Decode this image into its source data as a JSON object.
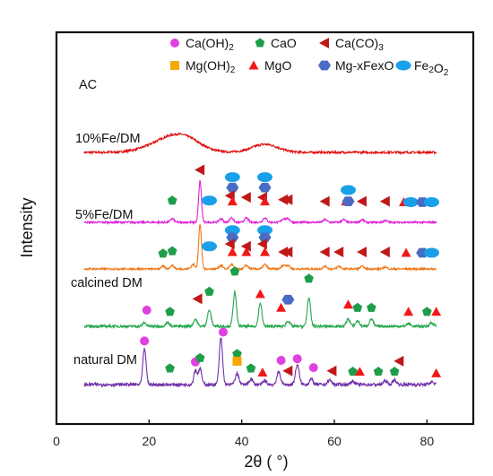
{
  "chart_data": {
    "type": "line",
    "xlabel": "2θ ( °)",
    "ylabel": "Intensity",
    "xlim": [
      0,
      90
    ],
    "xticks": [
      0,
      20,
      40,
      60,
      80
    ],
    "grid": false,
    "legend_position": "top",
    "legend": [
      {
        "name": "Ca(OH)2",
        "marker": "circle",
        "color": "#e040e0"
      },
      {
        "name": "CaO",
        "marker": "pentagon",
        "color": "#1e9e4a"
      },
      {
        "name": "Ca(CO)3",
        "marker": "triangle-left",
        "color": "#c01818"
      },
      {
        "name": "Mg(OH)2",
        "marker": "square",
        "color": "#f5a800"
      },
      {
        "name": "MgO",
        "marker": "triangle-up",
        "color": "#f21818"
      },
      {
        "name": "Mg-xFexO",
        "marker": "hexagon",
        "color": "#4a6bc4"
      },
      {
        "name": "Fe2O2",
        "marker": "ellipse",
        "color": "#1aa0e8"
      }
    ],
    "series": [
      {
        "name": "AC",
        "color": "#e01010",
        "baseline": 94,
        "noise": 0.6,
        "peaks": [
          [
            25,
            16,
            4.5
          ],
          [
            28,
            6,
            3
          ],
          [
            45,
            9,
            2.8
          ]
        ]
      },
      {
        "name": "10%Fe/DM",
        "color": "#e020d8",
        "baseline": 16,
        "noise": 0.5,
        "peaks": [
          [
            31,
            46,
            0.3
          ],
          [
            25,
            4,
            0.4
          ],
          [
            35.5,
            4,
            0.4
          ],
          [
            37.8,
            5,
            0.4
          ],
          [
            41,
            5,
            0.4
          ],
          [
            45,
            5,
            0.4
          ],
          [
            49,
            4,
            0.4
          ],
          [
            50,
            4,
            0.4
          ],
          [
            58,
            3,
            0.4
          ],
          [
            62,
            3,
            0.4
          ],
          [
            66,
            3,
            0.4
          ],
          [
            71,
            2,
            0.4
          ]
        ]
      },
      {
        "name": "5%Fe/DM",
        "color": "#f07818",
        "baseline": -36,
        "noise": 0.5,
        "peaks": [
          [
            29.5,
            5,
            0.4
          ],
          [
            31,
            50,
            0.3
          ],
          [
            23,
            3,
            0.4
          ],
          [
            25,
            4,
            0.4
          ],
          [
            35.5,
            4,
            0.4
          ],
          [
            37.8,
            5,
            0.4
          ],
          [
            41,
            4,
            0.4
          ],
          [
            45,
            5,
            0.4
          ],
          [
            49,
            4,
            0.4
          ],
          [
            50,
            4,
            0.4
          ],
          [
            58,
            3,
            0.4
          ],
          [
            61,
            3,
            0.4
          ],
          [
            66,
            3,
            0.4
          ],
          [
            71,
            2,
            0.4
          ]
        ]
      },
      {
        "name": "calcined DM",
        "color": "#22a84a",
        "baseline": -100,
        "noise": 0.7,
        "peaks": [
          [
            19,
            4,
            0.4
          ],
          [
            24,
            4,
            0.4
          ],
          [
            30,
            8,
            0.4
          ],
          [
            33,
            18,
            0.4
          ],
          [
            38.5,
            38,
            0.35
          ],
          [
            44,
            26,
            0.35
          ],
          [
            50,
            6,
            0.4
          ],
          [
            54.5,
            32,
            0.35
          ],
          [
            63,
            8,
            0.4
          ],
          [
            65,
            6,
            0.4
          ],
          [
            68,
            8,
            0.4
          ],
          [
            76,
            3,
            0.4
          ],
          [
            81,
            4,
            0.4
          ]
        ]
      },
      {
        "name": "natural DM",
        "color": "#7030a8",
        "baseline": -165,
        "noise": 0.9,
        "peaks": [
          [
            19,
            40,
            0.35
          ],
          [
            30,
            16,
            0.35
          ],
          [
            31,
            18,
            0.35
          ],
          [
            35.5,
            52,
            0.35
          ],
          [
            39,
            12,
            0.4
          ],
          [
            42,
            6,
            0.4
          ],
          [
            45,
            4,
            0.4
          ],
          [
            48,
            14,
            0.4
          ],
          [
            52,
            22,
            0.4
          ],
          [
            55,
            6,
            0.4
          ],
          [
            59,
            5,
            0.4
          ],
          [
            64,
            4,
            0.4
          ],
          [
            71,
            4,
            0.4
          ],
          [
            73,
            5,
            0.4
          ],
          [
            81,
            3,
            0.4
          ]
        ]
      }
    ],
    "phase_markers": [
      {
        "series": "10%Fe/DM",
        "items": [
          {
            "type": "triangle-left",
            "x": 31,
            "level": 6.5
          },
          {
            "type": "ellipse",
            "x": 38,
            "level": 5.6
          },
          {
            "type": "ellipse",
            "x": 45,
            "level": 5.6
          },
          {
            "type": "hexagon",
            "x": 38,
            "level": 4.3
          },
          {
            "type": "hexagon",
            "x": 45,
            "level": 4.3
          },
          {
            "type": "ellipse",
            "x": 63,
            "level": 4.0
          },
          {
            "type": "pentagon",
            "x": 25,
            "level": 2.7
          },
          {
            "type": "ellipse",
            "x": 33,
            "level": 2.7
          },
          {
            "type": "triangle-left",
            "x": 37.5,
            "level": 3.3
          },
          {
            "type": "triangle-left",
            "x": 41,
            "level": 3.1
          },
          {
            "type": "triangle-left",
            "x": 44.5,
            "level": 3.1
          },
          {
            "type": "triangle-left",
            "x": 49,
            "level": 2.8
          },
          {
            "type": "triangle-left",
            "x": 50,
            "level": 2.8
          },
          {
            "type": "triangle-up",
            "x": 38,
            "level": 2.6
          },
          {
            "type": "triangle-up",
            "x": 45,
            "level": 2.6
          },
          {
            "type": "triangle-left",
            "x": 58,
            "level": 2.6
          },
          {
            "type": "triangle-up",
            "x": 62.5,
            "level": 2.6
          },
          {
            "type": "hexagon",
            "x": 63,
            "level": 2.6
          },
          {
            "type": "triangle-left",
            "x": 66,
            "level": 2.6
          },
          {
            "type": "triangle-left",
            "x": 71,
            "level": 2.6
          },
          {
            "type": "triangle-up",
            "x": 75,
            "level": 2.5
          },
          {
            "type": "ellipse",
            "x": 76.5,
            "level": 2.5
          },
          {
            "type": "hexagon",
            "x": 79,
            "level": 2.5
          },
          {
            "type": "ellipse",
            "x": 81,
            "level": 2.5
          }
        ]
      },
      {
        "series": "5%Fe/DM",
        "items": [
          {
            "type": "ellipse",
            "x": 38,
            "level": 4.8
          },
          {
            "type": "ellipse",
            "x": 45,
            "level": 4.8
          },
          {
            "type": "hexagon",
            "x": 38,
            "level": 3.9
          },
          {
            "type": "hexagon",
            "x": 45,
            "level": 3.9
          },
          {
            "type": "triangle-left",
            "x": 37.5,
            "level": 3.1
          },
          {
            "type": "triangle-left",
            "x": 44.5,
            "level": 3.1
          },
          {
            "type": "ellipse",
            "x": 33,
            "level": 2.8
          },
          {
            "type": "triangle-left",
            "x": 41,
            "level": 2.8
          },
          {
            "type": "triangle-up",
            "x": 38,
            "level": 2.1
          },
          {
            "type": "triangle-up",
            "x": 41,
            "level": 2.1
          },
          {
            "type": "triangle-up",
            "x": 45,
            "level": 2.1
          },
          {
            "type": "pentagon",
            "x": 23,
            "level": 1.9
          },
          {
            "type": "pentagon",
            "x": 25,
            "level": 2.2
          },
          {
            "type": "triangle-left",
            "x": 49,
            "level": 2.1
          },
          {
            "type": "triangle-left",
            "x": 50,
            "level": 2.1
          },
          {
            "type": "triangle-left",
            "x": 58,
            "level": 2.1
          },
          {
            "type": "triangle-left",
            "x": 61,
            "level": 2.1
          },
          {
            "type": "triangle-left",
            "x": 66,
            "level": 2.1
          },
          {
            "type": "triangle-left",
            "x": 71,
            "level": 2.1
          },
          {
            "type": "triangle-up",
            "x": 75.5,
            "level": 2.0
          },
          {
            "type": "hexagon",
            "x": 79,
            "level": 2.0
          },
          {
            "type": "ellipse",
            "x": 81,
            "level": 2.0
          }
        ]
      },
      {
        "series": "calcined DM",
        "items": [
          {
            "type": "pentagon",
            "x": 38.5,
            "level": 6.8
          },
          {
            "type": "pentagon",
            "x": 54.5,
            "level": 5.9
          },
          {
            "type": "pentagon",
            "x": 33,
            "level": 4.3
          },
          {
            "type": "triangle-up",
            "x": 44,
            "level": 4.0
          },
          {
            "type": "triangle-left",
            "x": 30.5,
            "level": 3.4
          },
          {
            "type": "hexagon",
            "x": 50,
            "level": 3.3
          },
          {
            "type": "circle",
            "x": 19.5,
            "level": 2.0
          },
          {
            "type": "pentagon",
            "x": 24.5,
            "level": 1.8
          },
          {
            "type": "triangle-up",
            "x": 48.5,
            "level": 2.3
          },
          {
            "type": "triangle-up",
            "x": 63,
            "level": 2.7
          },
          {
            "type": "pentagon",
            "x": 65,
            "level": 2.3
          },
          {
            "type": "pentagon",
            "x": 68,
            "level": 2.3
          },
          {
            "type": "triangle-up",
            "x": 76,
            "level": 1.8
          },
          {
            "type": "pentagon",
            "x": 80,
            "level": 1.8
          },
          {
            "type": "triangle-up",
            "x": 82,
            "level": 1.8
          }
        ]
      },
      {
        "series": "natural DM",
        "items": [
          {
            "type": "circle",
            "x": 19,
            "level": 5.4
          },
          {
            "type": "circle",
            "x": 36,
            "level": 6.5
          },
          {
            "type": "circle",
            "x": 30,
            "level": 2.8
          },
          {
            "type": "pentagon",
            "x": 31,
            "level": 3.3
          },
          {
            "type": "pentagon",
            "x": 39,
            "level": 3.8
          },
          {
            "type": "square",
            "x": 39,
            "level": 2.9
          },
          {
            "type": "pentagon",
            "x": 24.5,
            "level": 2.0
          },
          {
            "type": "pentagon",
            "x": 42,
            "level": 2.0
          },
          {
            "type": "triangle-up",
            "x": 44.5,
            "level": 1.5
          },
          {
            "type": "circle",
            "x": 48.5,
            "level": 3.0
          },
          {
            "type": "triangle-left",
            "x": 50,
            "level": 1.7
          },
          {
            "type": "circle",
            "x": 52,
            "level": 3.2
          },
          {
            "type": "circle",
            "x": 55.5,
            "level": 2.1
          },
          {
            "type": "triangle-left",
            "x": 59.5,
            "level": 1.7
          },
          {
            "type": "pentagon",
            "x": 64,
            "level": 1.6
          },
          {
            "type": "triangle-up",
            "x": 65.5,
            "level": 1.6
          },
          {
            "type": "pentagon",
            "x": 69.5,
            "level": 1.6
          },
          {
            "type": "pentagon",
            "x": 73,
            "level": 1.6
          },
          {
            "type": "triangle-left",
            "x": 74,
            "level": 2.9
          },
          {
            "type": "triangle-up",
            "x": 82,
            "level": 1.4
          }
        ]
      }
    ]
  }
}
